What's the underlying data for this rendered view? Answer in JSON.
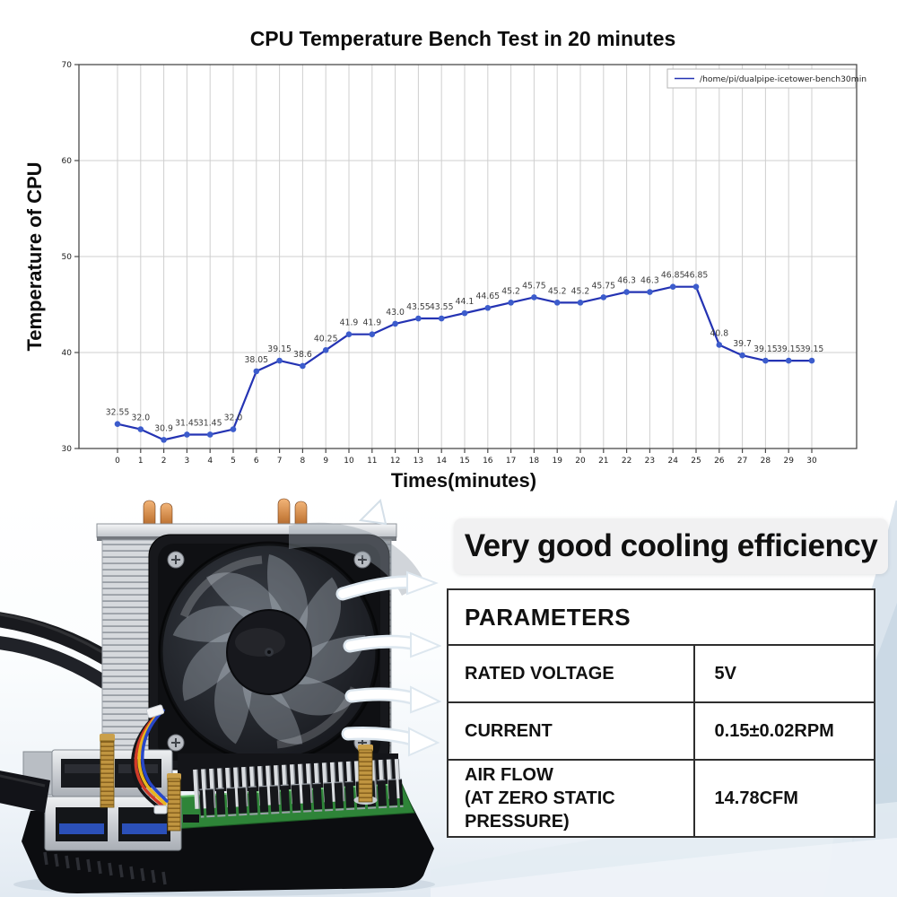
{
  "chart_data": {
    "type": "line",
    "title": "CPU Temperature Bench Test in 20 minutes",
    "xlabel": "Times(minutes)",
    "ylabel": "Temperature of CPU",
    "x": [
      0,
      1,
      2,
      3,
      4,
      5,
      6,
      7,
      8,
      9,
      10,
      11,
      12,
      13,
      14,
      15,
      16,
      17,
      18,
      19,
      20,
      21,
      22,
      23,
      24,
      25,
      26,
      27,
      28,
      29,
      30
    ],
    "xticks": [
      0,
      1,
      2,
      3,
      4,
      5,
      6,
      7,
      8,
      9,
      10,
      11,
      12,
      13,
      14,
      15,
      16,
      17,
      18,
      19,
      20,
      21,
      22,
      23,
      24,
      25,
      26,
      27,
      28,
      29,
      30
    ],
    "ylim": [
      30,
      70
    ],
    "yticks": [
      30,
      40,
      50,
      60,
      70
    ],
    "grid": true,
    "legend_position": "upper-right",
    "series": [
      {
        "name": "/home/pi/dualpipe-icetower-bench30min",
        "color": "#2433b3",
        "marker_color": "#3c5ccc",
        "values": [
          32.55,
          32.0,
          30.9,
          31.45,
          31.45,
          32.0,
          38.05,
          39.15,
          38.6,
          40.25,
          41.9,
          41.9,
          43.0,
          43.55,
          43.55,
          44.1,
          44.65,
          45.2,
          45.75,
          45.2,
          45.2,
          45.75,
          46.3,
          46.3,
          46.85,
          46.85,
          40.8,
          39.7,
          39.15,
          39.15,
          39.15
        ],
        "labels": [
          "32.55",
          "32.0",
          "30.9",
          "31.45",
          "31.45",
          "32.0",
          "38.05",
          "39.15",
          "38.6",
          "40.25",
          "41.9",
          "41.9",
          "43.0",
          "43.55",
          "43.55",
          "44.1",
          "44.65",
          "45.2",
          "45.75",
          "45.2",
          "45.2",
          "45.75",
          "46.3",
          "46.3",
          "46.85",
          "46.85",
          "40.8",
          "39.7",
          "39.15",
          "39.15",
          "39.15"
        ]
      }
    ],
    "style": {
      "grid": "#cfcfcf",
      "spine": "#4a4a4a",
      "legend_border": "#b5b5b5"
    }
  },
  "headline": {
    "text": "Very good cooling efficiency"
  },
  "parameters_table": {
    "header": "PARAMETERS",
    "rows": [
      {
        "label": "RATED VOLTAGE",
        "value": "5V"
      },
      {
        "label": "CURRENT",
        "value": "0.15±0.02RPM"
      },
      {
        "label": "AIR FLOW\n(AT ZERO STATIC PRESSURE)",
        "value": "14.78CFM"
      }
    ]
  },
  "photo": {
    "subject": "ice-tower-cpu-cooler-on-raspberry-pi",
    "airflow_arrows": 4
  }
}
